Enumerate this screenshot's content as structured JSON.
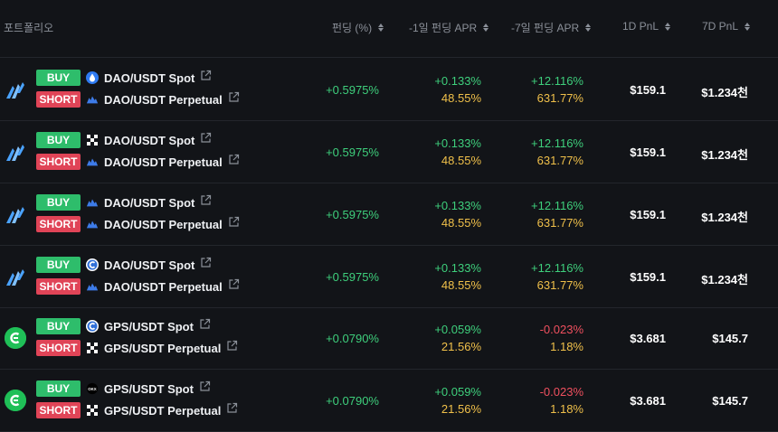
{
  "header": {
    "portfolio": "포트폴리오",
    "funding": "펀딩 (%)",
    "apr_1d": "-1일 펀딩 APR",
    "apr_7d": "-7일 펀딩 APR",
    "pnl_1d": "1D PnL",
    "pnl_7d": "7D PnL"
  },
  "rows": [
    {
      "logo": "blue-wing-logo",
      "long": {
        "side": "BUY",
        "exchange_icon": "blue-drop-icon",
        "pair": "DAO/USDT Spot"
      },
      "short": {
        "side": "SHORT",
        "exchange_icon": "blue-cloud-icon",
        "pair": "DAO/USDT Perpetual"
      },
      "funding": "+0.5975%",
      "apr1d_change": "+0.133%",
      "apr1d_value": "48.55%",
      "apr7d_change": "+12.116%",
      "apr7d_value": "631.77%",
      "pnl1d": "$159.1",
      "pnl7d": "$1.234천"
    },
    {
      "logo": "blue-wing-logo",
      "long": {
        "side": "BUY",
        "exchange_icon": "x-cross-icon",
        "pair": "DAO/USDT Spot"
      },
      "short": {
        "side": "SHORT",
        "exchange_icon": "blue-cloud-icon",
        "pair": "DAO/USDT Perpetual"
      },
      "funding": "+0.5975%",
      "apr1d_change": "+0.133%",
      "apr1d_value": "48.55%",
      "apr7d_change": "+12.116%",
      "apr7d_value": "631.77%",
      "pnl1d": "$159.1",
      "pnl7d": "$1.234천"
    },
    {
      "logo": "blue-wing-logo",
      "long": {
        "side": "BUY",
        "exchange_icon": "blue-cloud-icon",
        "pair": "DAO/USDT Spot"
      },
      "short": {
        "side": "SHORT",
        "exchange_icon": "blue-cloud-icon",
        "pair": "DAO/USDT Perpetual"
      },
      "funding": "+0.5975%",
      "apr1d_change": "+0.133%",
      "apr1d_value": "48.55%",
      "apr7d_change": "+12.116%",
      "apr7d_value": "631.77%",
      "pnl1d": "$159.1",
      "pnl7d": "$1.234천"
    },
    {
      "logo": "blue-wing-logo",
      "long": {
        "side": "BUY",
        "exchange_icon": "c-circle-icon",
        "pair": "DAO/USDT Spot"
      },
      "short": {
        "side": "SHORT",
        "exchange_icon": "blue-cloud-icon",
        "pair": "DAO/USDT Perpetual"
      },
      "funding": "+0.5975%",
      "apr1d_change": "+0.133%",
      "apr1d_value": "48.55%",
      "apr7d_change": "+12.116%",
      "apr7d_value": "631.77%",
      "pnl1d": "$159.1",
      "pnl7d": "$1.234천"
    },
    {
      "logo": "green-circle-logo",
      "long": {
        "side": "BUY",
        "exchange_icon": "c-circle-icon",
        "pair": "GPS/USDT Spot"
      },
      "short": {
        "side": "SHORT",
        "exchange_icon": "x-cross-icon",
        "pair": "GPS/USDT Perpetual"
      },
      "funding": "+0.0790%",
      "apr1d_change": "+0.059%",
      "apr1d_value": "21.56%",
      "apr7d_change": "-0.023%",
      "apr7d_value": "1.18%",
      "pnl1d": "$3.681",
      "pnl7d": "$145.7"
    },
    {
      "logo": "green-circle-logo",
      "long": {
        "side": "BUY",
        "exchange_icon": "okx-icon",
        "pair": "GPS/USDT Spot"
      },
      "short": {
        "side": "SHORT",
        "exchange_icon": "x-cross-icon",
        "pair": "GPS/USDT Perpetual"
      },
      "funding": "+0.0790%",
      "apr1d_change": "+0.059%",
      "apr1d_value": "21.56%",
      "apr7d_change": "-0.023%",
      "apr7d_value": "1.18%",
      "pnl1d": "$3.681",
      "pnl7d": "$145.7"
    }
  ],
  "colors": {
    "background": "#121418",
    "positive": "#3ecf7c",
    "negative": "#f0505f",
    "apr_value": "#f0c04a",
    "buy_badge": "#2ebd6b",
    "short_badge": "#e04457"
  }
}
